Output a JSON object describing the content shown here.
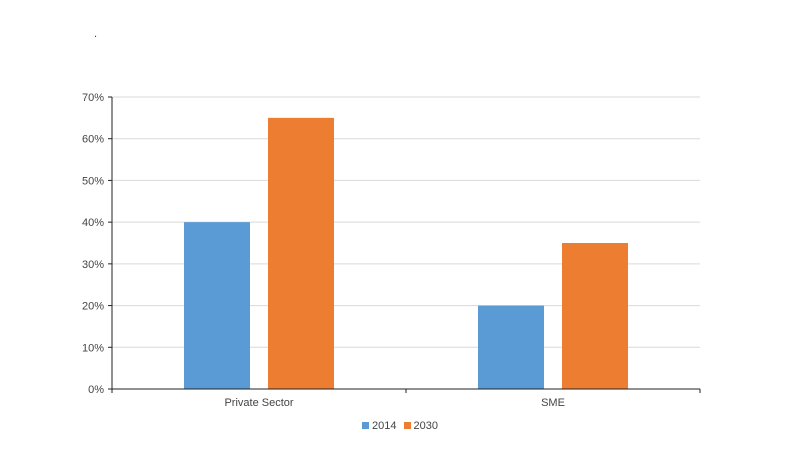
{
  "chart_data": {
    "type": "bar",
    "title": ".",
    "categories": [
      "Private Sector",
      "SME"
    ],
    "series": [
      {
        "name": "2014",
        "values": [
          40,
          20
        ],
        "color": "#5b9bd5"
      },
      {
        "name": "2030",
        "values": [
          65,
          35
        ],
        "color": "#ed7d31"
      }
    ],
    "ylim": [
      0,
      70
    ],
    "yticks": [
      "0%",
      "10%",
      "20%",
      "30%",
      "40%",
      "50%",
      "60%",
      "70%"
    ],
    "grid": true,
    "legend_position": "bottom-center"
  }
}
